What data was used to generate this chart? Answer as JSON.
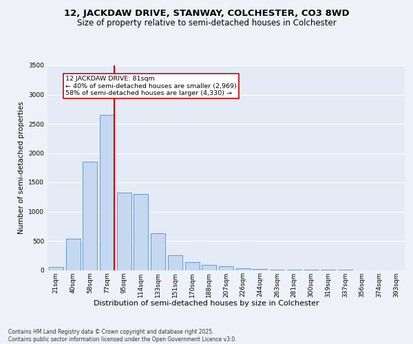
{
  "title_line1": "12, JACKDAW DRIVE, STANWAY, COLCHESTER, CO3 8WD",
  "title_line2": "Size of property relative to semi-detached houses in Colchester",
  "xlabel": "Distribution of semi-detached houses by size in Colchester",
  "ylabel": "Number of semi-detached properties",
  "footnote": "Contains HM Land Registry data © Crown copyright and database right 2025.\nContains public sector information licensed under the Open Government Licence v3.0.",
  "bar_labels": [
    "21sqm",
    "40sqm",
    "58sqm",
    "77sqm",
    "95sqm",
    "114sqm",
    "133sqm",
    "151sqm",
    "170sqm",
    "188sqm",
    "207sqm",
    "226sqm",
    "244sqm",
    "263sqm",
    "281sqm",
    "300sqm",
    "319sqm",
    "337sqm",
    "356sqm",
    "374sqm",
    "393sqm"
  ],
  "bar_values": [
    55,
    530,
    1850,
    2650,
    1320,
    1300,
    630,
    250,
    140,
    90,
    60,
    35,
    20,
    10,
    5,
    2,
    1,
    1,
    0,
    0,
    0
  ],
  "bar_color": "#c5d8f0",
  "bar_edgecolor": "#5b9bd5",
  "vline_color": "#cc0000",
  "vline_x": 3.42,
  "annotation_title": "12 JACKDAW DRIVE: 81sqm",
  "annotation_smaller": "← 40% of semi-detached houses are smaller (2,969)",
  "annotation_larger": "58% of semi-detached houses are larger (4,330) →",
  "annotation_box_edgecolor": "#cc0000",
  "ylim": [
    0,
    3500
  ],
  "yticks": [
    0,
    500,
    1000,
    1500,
    2000,
    2500,
    3000,
    3500
  ],
  "background_color": "#eef2f8",
  "plot_background": "#e4eaf6",
  "grid_color": "#ffffff",
  "title_fontsize": 9.5,
  "subtitle_fontsize": 8.5,
  "tick_fontsize": 6.5,
  "ylabel_fontsize": 7.5,
  "xlabel_fontsize": 8,
  "annot_fontsize": 6.8
}
